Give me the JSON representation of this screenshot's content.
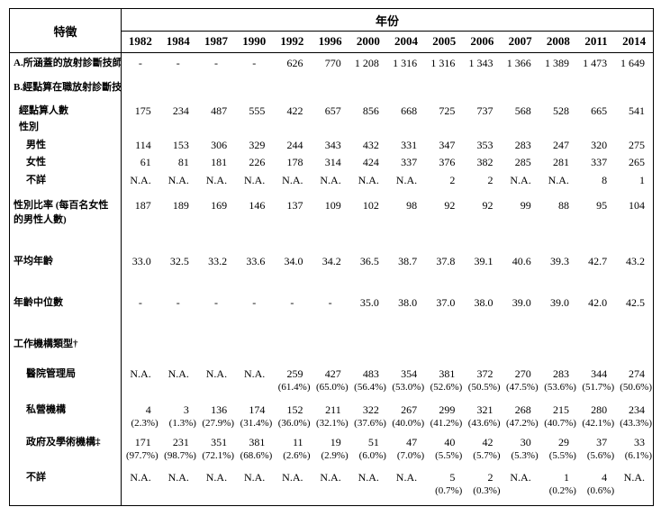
{
  "page": {
    "background": "#ffffff",
    "text_color": "#000000",
    "border_color": "#000000"
  },
  "table": {
    "corner_label": "特徵",
    "year_header": "年份",
    "years": [
      "1982",
      "1984",
      "1987",
      "1990",
      "1992",
      "1996",
      "2000",
      "2004",
      "2005",
      "2006",
      "2007",
      "2008",
      "2011",
      "2014"
    ],
    "rows": [
      {
        "name": "covered-radiographers",
        "label": "A.所涵蓋的放射診斷技師*",
        "indent": 0,
        "values": [
          "-",
          "-",
          "-",
          "-",
          "626",
          "770",
          "1 208",
          "1 316",
          "1 316",
          "1 343",
          "1 366",
          "1 389",
          "1 473",
          "1 649"
        ]
      },
      {
        "name": "enumerated-section",
        "label": "B.經點算在職放射診斷技師",
        "indent": 0,
        "values": []
      },
      {
        "name": "enumerated-count",
        "label": "經點算人數",
        "indent": 1,
        "values": [
          "175",
          "234",
          "487",
          "555",
          "422",
          "657",
          "856",
          "668",
          "725",
          "737",
          "568",
          "528",
          "665",
          "541"
        ]
      },
      {
        "name": "sex-section",
        "label": "性別",
        "indent": 1,
        "values": []
      },
      {
        "name": "male",
        "label": "男性",
        "indent": 2,
        "values": [
          "114",
          "153",
          "306",
          "329",
          "244",
          "343",
          "432",
          "331",
          "347",
          "353",
          "283",
          "247",
          "320",
          "275"
        ]
      },
      {
        "name": "female",
        "label": "女性",
        "indent": 2,
        "values": [
          "61",
          "81",
          "181",
          "226",
          "178",
          "314",
          "424",
          "337",
          "376",
          "382",
          "285",
          "281",
          "337",
          "265"
        ]
      },
      {
        "name": "sex-unknown",
        "label": "不詳",
        "indent": 2,
        "values": [
          "N.A.",
          "N.A.",
          "N.A.",
          "N.A.",
          "N.A.",
          "N.A.",
          "N.A.",
          "N.A.",
          "2",
          "2",
          "N.A.",
          "N.A.",
          "8",
          "1"
        ]
      },
      {
        "name": "sex-ratio",
        "label": "性別比率 (每百名女性",
        "label2": "的男性人數)",
        "indent": 0,
        "values": [
          "187",
          "189",
          "169",
          "146",
          "137",
          "109",
          "102",
          "98",
          "92",
          "92",
          "99",
          "88",
          "95",
          "104"
        ]
      },
      {
        "name": "mean-age",
        "label": "平均年齡",
        "indent": 0,
        "values": [
          "33.0",
          "32.5",
          "33.2",
          "33.6",
          "34.0",
          "34.2",
          "36.5",
          "38.7",
          "37.8",
          "39.1",
          "40.6",
          "39.3",
          "42.7",
          "43.2"
        ]
      },
      {
        "name": "median-age",
        "label": "年齡中位數",
        "indent": 0,
        "values": [
          "-",
          "-",
          "-",
          "-",
          "-",
          "-",
          "35.0",
          "38.0",
          "37.0",
          "38.0",
          "39.0",
          "39.0",
          "42.0",
          "42.5"
        ]
      },
      {
        "name": "institution-type-section",
        "label": "工作機構類型†",
        "indent": 0,
        "values": []
      },
      {
        "name": "hospital-authority",
        "label": "醫院管理局",
        "indent": 2,
        "values": [
          "N.A.",
          "N.A.",
          "N.A.",
          "N.A.",
          "259",
          "427",
          "483",
          "354",
          "381",
          "372",
          "270",
          "283",
          "344",
          "274"
        ],
        "pct": [
          "",
          "",
          "",
          "",
          "(61.4%)",
          "(65.0%)",
          "(56.4%)",
          "(53.0%)",
          "(52.6%)",
          "(50.5%)",
          "(47.5%)",
          "(53.6%)",
          "(51.7%)",
          "(50.6%)"
        ]
      },
      {
        "name": "private-institutions",
        "label": "私營機構",
        "indent": 2,
        "values": [
          "4",
          "3",
          "136",
          "174",
          "152",
          "211",
          "322",
          "267",
          "299",
          "321",
          "268",
          "215",
          "280",
          "234"
        ],
        "pct": [
          "(2.3%)",
          "(1.3%)",
          "(27.9%)",
          "(31.4%)",
          "(36.0%)",
          "(32.1%)",
          "(37.6%)",
          "(40.0%)",
          "(41.2%)",
          "(43.6%)",
          "(47.2%)",
          "(40.7%)",
          "(42.1%)",
          "(43.3%)"
        ]
      },
      {
        "name": "government-academic",
        "label": "政府及學術機構‡",
        "indent": 2,
        "values": [
          "171",
          "231",
          "351",
          "381",
          "11",
          "19",
          "51",
          "47",
          "40",
          "42",
          "30",
          "29",
          "37",
          "33"
        ],
        "pct": [
          "(97.7%)",
          "(98.7%)",
          "(72.1%)",
          "(68.6%)",
          "(2.6%)",
          "(2.9%)",
          "(6.0%)",
          "(7.0%)",
          "(5.5%)",
          "(5.7%)",
          "(5.3%)",
          "(5.5%)",
          "(5.6%)",
          "(6.1%)"
        ]
      },
      {
        "name": "institution-unknown",
        "label": "不詳",
        "indent": 2,
        "values": [
          "N.A.",
          "N.A.",
          "N.A.",
          "N.A.",
          "N.A.",
          "N.A.",
          "N.A.",
          "N.A.",
          "5",
          "2",
          "N.A.",
          "1",
          "4",
          "N.A."
        ],
        "pct": [
          "",
          "",
          "",
          "",
          "",
          "",
          "",
          "",
          "(0.7%)",
          "(0.3%)",
          "",
          "(0.2%)",
          "(0.6%)",
          ""
        ]
      }
    ]
  }
}
